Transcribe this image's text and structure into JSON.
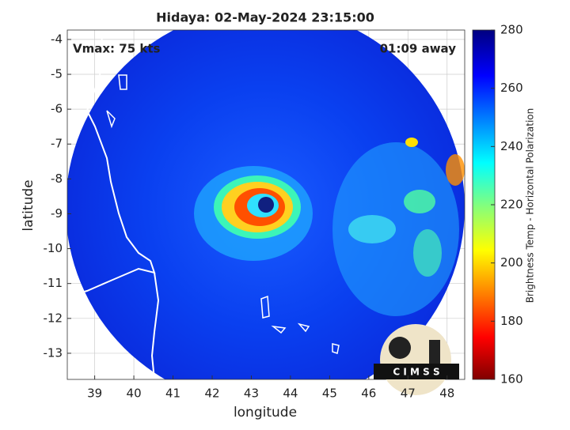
{
  "chart_data": {
    "type": "image-map",
    "title": "Hidaya: 02-May-2024 23:15:00",
    "annotations": [
      "Vmax: 75 kts",
      "01:09 away"
    ],
    "x_label": "longitude",
    "y_label": "latitude",
    "xlim": [
      38.3,
      48.45
    ],
    "xticks": [
      39,
      40,
      41,
      42,
      43,
      44,
      45,
      46,
      47,
      48
    ],
    "ylim": [
      -13.75,
      -3.73
    ],
    "yticks": [
      -13,
      -12,
      -11,
      -10,
      -9,
      -8,
      -7,
      -6,
      -5,
      -4
    ],
    "grid": true,
    "colorbar": {
      "label": "Brightness Temp - Horizontal Polarization",
      "lim": [
        160,
        280
      ],
      "ticks": [
        160,
        180,
        200,
        220,
        240,
        260,
        280
      ]
    },
    "logo_text": "C I M S S"
  }
}
